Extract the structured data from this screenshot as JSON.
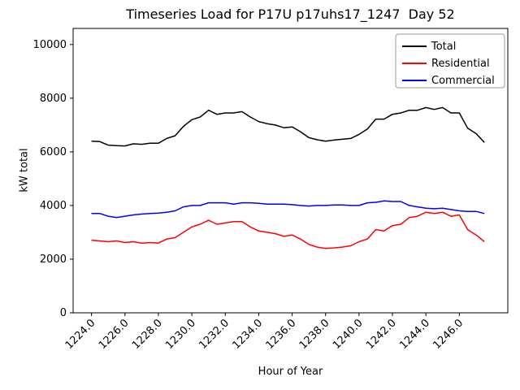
{
  "chart_data": {
    "type": "line",
    "title": "Timeseries Load for P17U p17uhs17_1247  Day 52",
    "xlabel": "Hour of Year",
    "ylabel": "kW total",
    "xlim": [
      1222.9,
      1248.9
    ],
    "ylim": [
      0,
      10600
    ],
    "grid": false,
    "legend_position": "upper right",
    "axis_color": "#000000",
    "x_ticks": [
      1224,
      1226,
      1228,
      1230,
      1232,
      1234,
      1236,
      1238,
      1240,
      1242,
      1244,
      1246
    ],
    "x_tick_labels": [
      "1224.0",
      "1226.0",
      "1228.0",
      "1230.0",
      "1232.0",
      "1234.0",
      "1236.0",
      "1238.0",
      "1240.0",
      "1242.0",
      "1244.0",
      "1246.0"
    ],
    "y_ticks": [
      0,
      2000,
      4000,
      6000,
      8000,
      10000
    ],
    "y_tick_labels": [
      "0",
      "2000",
      "4000",
      "6000",
      "8000",
      "10000"
    ],
    "x": [
      1224.0,
      1224.5,
      1225.0,
      1225.5,
      1226.0,
      1226.5,
      1227.0,
      1227.5,
      1228.0,
      1228.5,
      1229.0,
      1229.5,
      1230.0,
      1230.5,
      1231.0,
      1231.5,
      1232.0,
      1232.5,
      1233.0,
      1233.5,
      1234.0,
      1234.5,
      1235.0,
      1235.5,
      1236.0,
      1236.5,
      1237.0,
      1237.5,
      1238.0,
      1238.5,
      1239.0,
      1239.5,
      1240.0,
      1240.5,
      1241.0,
      1241.5,
      1242.0,
      1242.5,
      1243.0,
      1243.5,
      1244.0,
      1244.5,
      1245.0,
      1245.5,
      1246.0,
      1246.5,
      1247.0,
      1247.5
    ],
    "series": [
      {
        "name": "Total",
        "color": "#000000",
        "values": [
          6400,
          6380,
          6250,
          6230,
          6220,
          6300,
          6280,
          6320,
          6320,
          6500,
          6600,
          6950,
          7200,
          7300,
          7550,
          7400,
          7450,
          7450,
          7500,
          7300,
          7130,
          7050,
          7000,
          6900,
          6930,
          6750,
          6530,
          6450,
          6400,
          6440,
          6470,
          6500,
          6650,
          6850,
          7220,
          7220,
          7400,
          7450,
          7550,
          7550,
          7650,
          7580,
          7650,
          7450,
          7450,
          6880,
          6680,
          6350
        ]
      },
      {
        "name": "Residential",
        "color": "#ff0000",
        "values": [
          2700,
          2680,
          2650,
          2680,
          2620,
          2650,
          2600,
          2620,
          2600,
          2750,
          2800,
          3000,
          3200,
          3300,
          3450,
          3300,
          3350,
          3400,
          3400,
          3200,
          3050,
          3000,
          2950,
          2850,
          2900,
          2750,
          2550,
          2450,
          2400,
          2420,
          2450,
          2500,
          2650,
          2750,
          3100,
          3050,
          3250,
          3300,
          3550,
          3600,
          3750,
          3700,
          3750,
          3600,
          3650,
          3100,
          2900,
          2650
        ]
      },
      {
        "name": "Commercial",
        "color": "#0000ff",
        "values": [
          3700,
          3700,
          3600,
          3550,
          3600,
          3650,
          3680,
          3700,
          3720,
          3750,
          3800,
          3950,
          4000,
          4000,
          4100,
          4100,
          4100,
          4050,
          4100,
          4100,
          4080,
          4050,
          4050,
          4050,
          4030,
          4000,
          3980,
          4000,
          4000,
          4020,
          4020,
          4000,
          4000,
          4100,
          4120,
          4170,
          4150,
          4150,
          4000,
          3950,
          3900,
          3880,
          3900,
          3850,
          3800,
          3780,
          3780,
          3700
        ]
      }
    ]
  }
}
